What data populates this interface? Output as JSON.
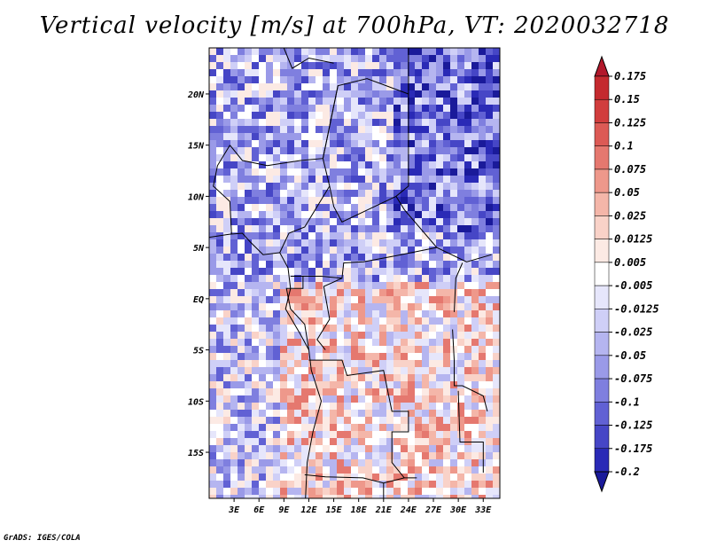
{
  "title": "Vertical velocity [m/s] at 700hPa, VT: 2020032718",
  "credit": "GrADS: IGES/COLA",
  "map": {
    "region": "Central Africa",
    "lon_range": [
      0,
      35
    ],
    "lat_range": [
      -19.5,
      24.5
    ],
    "x_ticks": [
      {
        "label": "3E",
        "lon": 3
      },
      {
        "label": "6E",
        "lon": 6
      },
      {
        "label": "9E",
        "lon": 9
      },
      {
        "label": "12E",
        "lon": 12
      },
      {
        "label": "15E",
        "lon": 15
      },
      {
        "label": "18E",
        "lon": 18
      },
      {
        "label": "21E",
        "lon": 21
      },
      {
        "label": "24E",
        "lon": 24
      },
      {
        "label": "27E",
        "lon": 27
      },
      {
        "label": "30E",
        "lon": 30
      },
      {
        "label": "33E",
        "lon": 33
      }
    ],
    "y_ticks": [
      {
        "label": "20N",
        "lat": 20
      },
      {
        "label": "15N",
        "lat": 15
      },
      {
        "label": "10N",
        "lat": 10
      },
      {
        "label": "5N",
        "lat": 5
      },
      {
        "label": "EQ",
        "lat": 0
      },
      {
        "label": "5S",
        "lat": -5
      },
      {
        "label": "10S",
        "lat": -10
      },
      {
        "label": "15S",
        "lat": -15
      }
    ]
  },
  "colorbar": {
    "levels": [
      "0.175",
      "0.15",
      "0.125",
      "0.1",
      "0.075",
      "0.05",
      "0.025",
      "0.0125",
      "0.005",
      "-0.005",
      "-0.0125",
      "-0.025",
      "-0.05",
      "-0.075",
      "-0.1",
      "-0.125",
      "-0.175",
      "-0.2"
    ],
    "colors": [
      "#b2182b",
      "#c42a2f",
      "#d13d3d",
      "#dc5a55",
      "#e5786f",
      "#ee988b",
      "#f4b6a9",
      "#f9d2c8",
      "#fceae4",
      "#ffffff",
      "#e6e6fb",
      "#cfcff7",
      "#b5b5f0",
      "#9a9ae8",
      "#7f7fdf",
      "#6161d4",
      "#4646c6",
      "#2a2ab6",
      "#1a1a9a"
    ]
  }
}
